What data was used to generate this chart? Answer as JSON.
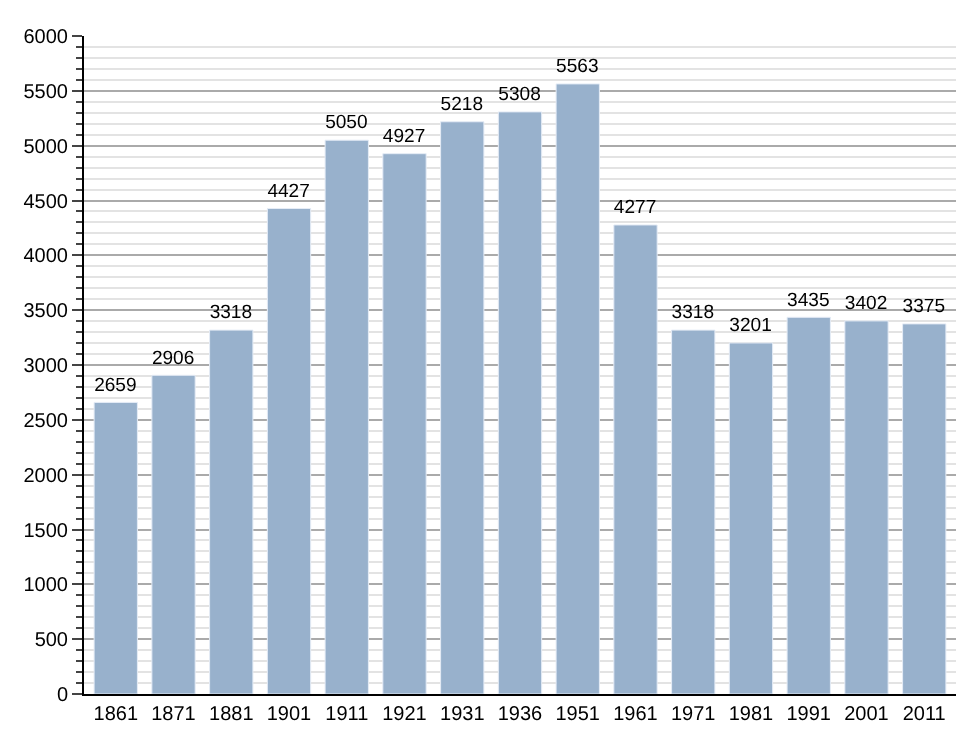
{
  "chart_data": {
    "type": "bar",
    "categories": [
      "1861",
      "1871",
      "1881",
      "1901",
      "1911",
      "1921",
      "1931",
      "1936",
      "1951",
      "1961",
      "1971",
      "1981",
      "1991",
      "2001",
      "2011"
    ],
    "values": [
      2659,
      2906,
      3318,
      4427,
      5050,
      4927,
      5218,
      5308,
      5563,
      4277,
      3318,
      3201,
      3435,
      3402,
      3375
    ],
    "color": "#98b1cc",
    "data_labels": true,
    "grid": "y",
    "ylim": [
      0,
      6000
    ],
    "yticks": [
      0,
      500,
      1000,
      1500,
      2000,
      2500,
      3000,
      3500,
      4000,
      4500,
      5000,
      5500,
      6000
    ]
  }
}
